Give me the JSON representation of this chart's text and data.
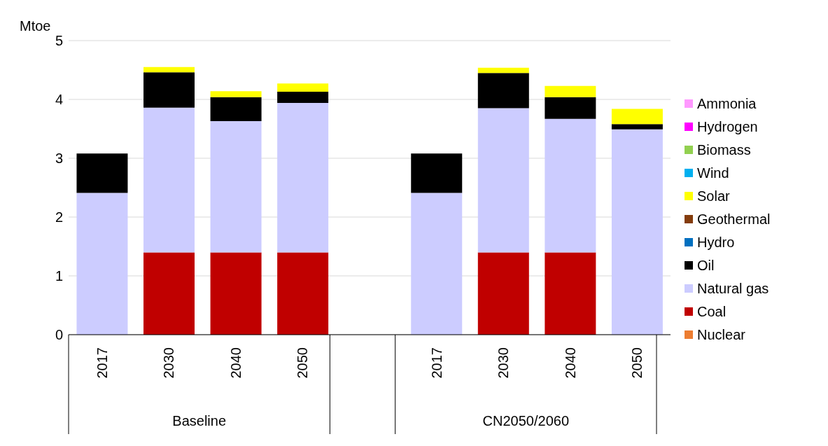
{
  "chart_data": {
    "type": "bar",
    "stacked": true,
    "ylabel": "Mtoe",
    "categories": [
      "2017",
      "2030",
      "2040",
      "2050",
      null,
      "2017",
      "2030",
      "2040",
      "2050"
    ],
    "annotations": [
      "Baseline",
      "CN2050/2060"
    ],
    "series": [
      {
        "name": "Nuclear",
        "color": "#ed7d31",
        "values": [
          0,
          0,
          0,
          0,
          null,
          0,
          0,
          0,
          0
        ]
      },
      {
        "name": "Coal",
        "color": "#c00000",
        "values": [
          0,
          1.4,
          1.4,
          1.4,
          null,
          0,
          1.4,
          1.4,
          0
        ]
      },
      {
        "name": "Natural gas",
        "color": "#ccccff",
        "values": [
          2.41,
          2.46,
          2.23,
          2.54,
          null,
          2.41,
          2.45,
          2.27,
          3.49
        ]
      },
      {
        "name": "Oil",
        "color": "#000000",
        "values": [
          0.67,
          0.6,
          0.41,
          0.19,
          null,
          0.67,
          0.6,
          0.37,
          0.09
        ]
      },
      {
        "name": "Hydro",
        "color": "#0070c0",
        "values": [
          0,
          0,
          0,
          0,
          null,
          0,
          0,
          0,
          0
        ]
      },
      {
        "name": "Geothermal",
        "color": "#843c0c",
        "values": [
          0,
          0,
          0,
          0,
          null,
          0,
          0,
          0,
          0
        ]
      },
      {
        "name": "Solar",
        "color": "#ffff00",
        "values": [
          0,
          0.09,
          0.1,
          0.14,
          null,
          0,
          0.09,
          0.19,
          0.26
        ]
      },
      {
        "name": "Wind",
        "color": "#00b0f0",
        "values": [
          0,
          0,
          0,
          0,
          null,
          0,
          0,
          0,
          0
        ]
      },
      {
        "name": "Biomass",
        "color": "#92d050",
        "values": [
          0,
          0,
          0,
          0,
          null,
          0,
          0,
          0,
          0
        ]
      },
      {
        "name": "Hydrogen",
        "color": "#ff00ff",
        "values": [
          0,
          0,
          0,
          0,
          null,
          0,
          0,
          0,
          0
        ]
      },
      {
        "name": "Ammonia",
        "color": "#ff99ff",
        "values": [
          0,
          0,
          0,
          0,
          null,
          0,
          0,
          0,
          0
        ]
      }
    ],
    "ylim": [
      0,
      5
    ],
    "yticks": [
      0,
      1,
      2,
      3,
      4,
      5
    ],
    "grid": "y",
    "legend": "right"
  }
}
